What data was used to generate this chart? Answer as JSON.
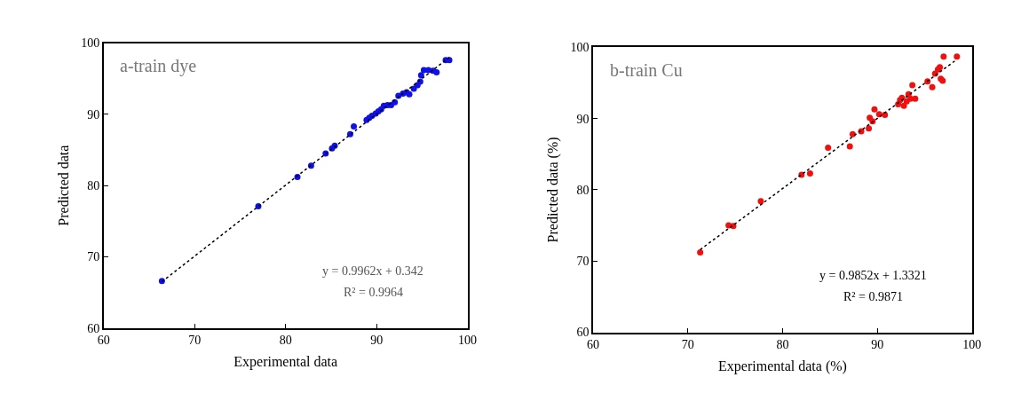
{
  "chart_data": [
    {
      "type": "scatter",
      "title": "a-train dye",
      "xlabel": "Experimental data",
      "ylabel": "Predicted data",
      "xlim": [
        60,
        100
      ],
      "xticks": [
        60,
        70,
        80,
        90,
        100
      ],
      "ylim": [
        60,
        100
      ],
      "yticks": [
        60,
        70,
        80,
        90,
        100
      ],
      "grid": false,
      "marker": "circle",
      "annotations": [
        "y = 0.9962x + 0.342",
        "R² = 0.9964"
      ],
      "series": [
        {
          "color": "#1010e8",
          "x": [
            66.4,
            77.0,
            81.3,
            82.8,
            84.4,
            85.1,
            85.4,
            87.1,
            87.5,
            88.9,
            89.2,
            89.5,
            89.9,
            90.2,
            90.5,
            90.8,
            91.2,
            91.6,
            92.0,
            92.4,
            92.9,
            93.3,
            93.6,
            94.1,
            94.5,
            94.8,
            94.9,
            95.2,
            95.7,
            96.2,
            96.6,
            97.6,
            98.0
          ],
          "values": [
            66.6,
            77.1,
            81.2,
            82.8,
            84.5,
            85.2,
            85.6,
            87.2,
            88.3,
            89.2,
            89.5,
            89.8,
            90.1,
            90.4,
            90.7,
            91.2,
            91.3,
            91.3,
            91.7,
            92.6,
            92.9,
            93.1,
            92.8,
            93.6,
            94.1,
            94.6,
            95.5,
            96.2,
            96.2,
            96.1,
            95.9,
            97.6,
            97.6
          ]
        },
        {
          "type": "line",
          "color": "#000000",
          "line_style": "dotted",
          "marker": "none",
          "x": [
            66.4,
            98.0
          ],
          "values": [
            66.5,
            98.0
          ]
        }
      ]
    },
    {
      "type": "scatter",
      "title": "b-train Cu",
      "xlabel": "Experimental data (%)",
      "ylabel": "Predicted data (%)",
      "xlim": [
        60,
        100
      ],
      "xticks": [
        60,
        70,
        80,
        90,
        100
      ],
      "ylim": [
        60,
        100
      ],
      "yticks": [
        60,
        70,
        80,
        90,
        100
      ],
      "grid": false,
      "marker": "circle",
      "annotations": [
        "y = 0.9852x + 1.3321",
        "R² = 0.9871"
      ],
      "series": [
        {
          "color": "#f01010",
          "x": [
            71.3,
            74.3,
            74.8,
            77.7,
            82.0,
            82.9,
            84.8,
            87.1,
            87.4,
            88.3,
            89.1,
            89.2,
            89.5,
            89.7,
            90.2,
            90.8,
            92.2,
            92.4,
            92.6,
            92.8,
            93.1,
            93.3,
            93.5,
            93.7,
            94.0,
            95.3,
            95.8,
            96.1,
            96.4,
            96.6,
            96.7,
            96.9,
            97.0,
            98.4
          ],
          "values": [
            71.2,
            75.0,
            74.9,
            78.4,
            82.1,
            82.3,
            85.9,
            86.1,
            87.8,
            88.2,
            88.6,
            90.1,
            89.6,
            91.3,
            90.6,
            90.5,
            92.0,
            92.6,
            92.9,
            91.8,
            92.4,
            93.4,
            92.8,
            94.7,
            92.8,
            95.2,
            94.4,
            96.3,
            96.9,
            97.2,
            95.6,
            95.3,
            98.7,
            98.7
          ]
        },
        {
          "type": "line",
          "color": "#000000",
          "line_style": "dotted",
          "marker": "none",
          "x": [
            71.3,
            98.4
          ],
          "values": [
            71.6,
            98.3
          ]
        }
      ]
    }
  ]
}
